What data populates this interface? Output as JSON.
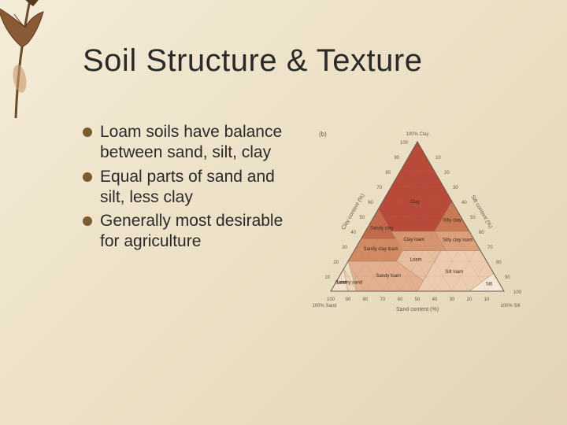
{
  "slide": {
    "title": "Soil Structure & Texture",
    "bullets": [
      "Loam soils have balance between sand, silt, clay",
      "Equal parts of sand and silt, less clay",
      "Generally most desirable for agriculture"
    ],
    "title_fontsize": 40,
    "body_fontsize": 21,
    "bullet_color": "#7a5a2f",
    "text_color": "#2a2a2a",
    "background_gradient": [
      "#f5ecd8",
      "#ede2c8",
      "#e8dcc0",
      "#e2d4b5"
    ]
  },
  "leaf": {
    "colors": {
      "stem": "#6b4a2a",
      "leaf_dark": "#5a3820",
      "leaf_mid": "#8a5a35",
      "leaf_light": "#c89a6a"
    }
  },
  "triangle": {
    "type": "ternary",
    "caption": "(b)",
    "axis_left": {
      "label": "Clay content (%)",
      "ticks": [
        10,
        20,
        30,
        40,
        50,
        60,
        70,
        80,
        90,
        100
      ]
    },
    "axis_right": {
      "label": "Silt content (%)",
      "ticks": [
        10,
        20,
        30,
        40,
        50,
        60,
        70,
        80,
        90,
        100
      ]
    },
    "axis_bottom": {
      "label": "Sand content (%)",
      "ticks": [
        10,
        20,
        30,
        40,
        50,
        60,
        70,
        80,
        90,
        100
      ]
    },
    "vertices": {
      "top": "100% Clay",
      "left": "100% Sand",
      "right": "100% Silt"
    },
    "regions": [
      {
        "name": "Clay",
        "color": "#b94a3a"
      },
      {
        "name": "Sandy clay",
        "color": "#c46a4a"
      },
      {
        "name": "Silty clay",
        "color": "#c97a55"
      },
      {
        "name": "Sandy clay loam",
        "color": "#d18a62"
      },
      {
        "name": "Clay loam",
        "color": "#d69470"
      },
      {
        "name": "Silty clay loam",
        "color": "#dca07d"
      },
      {
        "name": "Sandy loam",
        "color": "#e2b08f"
      },
      {
        "name": "Loam",
        "color": "#e8bfa0"
      },
      {
        "name": "Silt loam",
        "color": "#edcbb0"
      },
      {
        "name": "Loamy sand",
        "color": "#f0d6c0"
      },
      {
        "name": "Sand",
        "color": "#f3e0cf"
      },
      {
        "name": "Silt",
        "color": "#f5e8da"
      }
    ],
    "font_label": 7,
    "font_tick": 6,
    "font_caption": 8,
    "grid_color": "#8a7a6a",
    "tick_text_color": "#6a5a4a"
  }
}
